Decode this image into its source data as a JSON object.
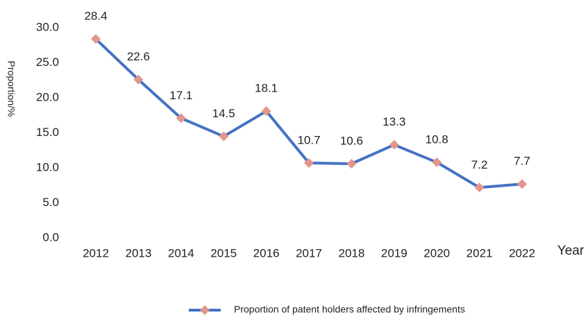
{
  "chart_data": {
    "type": "line",
    "y_label": "Proportion/%",
    "x_label": "Year",
    "categories": [
      "2012",
      "2013",
      "2014",
      "2015",
      "2016",
      "2017",
      "2018",
      "2019",
      "2020",
      "2021",
      "2022"
    ],
    "series": [
      {
        "name": "Proportion of patent holders affected by infringements",
        "color": "#4472c4",
        "marker_color": "#e2968c",
        "values": [
          28.4,
          22.6,
          17.1,
          14.5,
          18.1,
          10.7,
          10.6,
          13.3,
          10.8,
          7.2,
          7.7
        ]
      }
    ],
    "ylim": [
      0,
      30
    ],
    "yticks": [
      {
        "value": 0,
        "label": "0.0"
      },
      {
        "value": 5,
        "label": "5.0"
      },
      {
        "value": 10,
        "label": "10.0"
      },
      {
        "value": 15,
        "label": "15.0"
      },
      {
        "value": 20,
        "label": "20.0"
      },
      {
        "value": 25,
        "label": "25.0"
      },
      {
        "value": 30,
        "label": "30.0"
      }
    ],
    "grid": false,
    "legend": "bottom"
  }
}
